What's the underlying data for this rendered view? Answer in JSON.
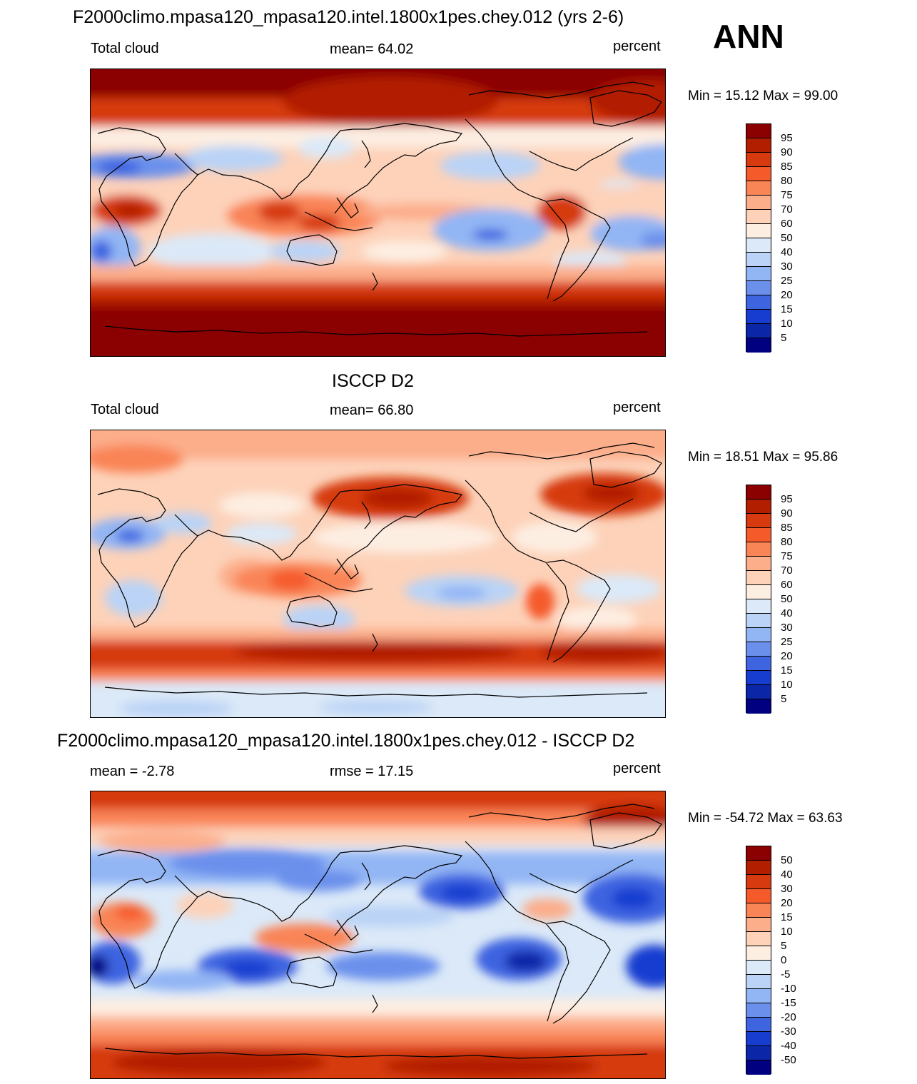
{
  "season": "ANN",
  "colors": {
    "ramp": [
      "#8b0000",
      "#b21e00",
      "#d63a0e",
      "#f55a2b",
      "#f98456",
      "#fcad8a",
      "#fdd2b9",
      "#fdeee2",
      "#dbe9f8",
      "#bad3f6",
      "#92b5f4",
      "#6b90ec",
      "#3e64e0",
      "#173dd0",
      "#0b27a8",
      "#000080"
    ]
  },
  "panels": [
    {
      "title": "F2000climo.mpasa120_mpasa120.intel.1800x1pes.chey.012 (yrs 2-6)",
      "left": "Total cloud",
      "center": "mean=  64.02",
      "right": "percent",
      "minmax": "Min =  15.12 Max =  99.00",
      "colorbar_labels": [
        "95",
        "90",
        "85",
        "80",
        "75",
        "70",
        "60",
        "50",
        "40",
        "30",
        "25",
        "20",
        "15",
        "10",
        "5"
      ],
      "colors": [
        "#8b0000",
        "#b21e00",
        "#d63a0e",
        "#f55a2b",
        "#f98456",
        "#fcad8a",
        "#fdd2b9",
        "#fdeee2",
        "#dbe9f8",
        "#bad3f6",
        "#92b5f4",
        "#6b90ec",
        "#3e64e0",
        "#173dd0",
        "#0b27a8",
        "#000080"
      ]
    },
    {
      "title": "ISCCP D2",
      "left": "Total cloud",
      "center": "mean=  66.80",
      "right": "percent",
      "minmax": "Min =  18.51 Max =  95.86",
      "colorbar_labels": [
        "95",
        "90",
        "85",
        "80",
        "75",
        "70",
        "60",
        "50",
        "40",
        "30",
        "25",
        "20",
        "15",
        "10",
        "5"
      ],
      "colors": [
        "#8b0000",
        "#b21e00",
        "#d63a0e",
        "#f55a2b",
        "#f98456",
        "#fcad8a",
        "#fdd2b9",
        "#fdeee2",
        "#dbe9f8",
        "#bad3f6",
        "#92b5f4",
        "#6b90ec",
        "#3e64e0",
        "#173dd0",
        "#0b27a8",
        "#000080"
      ]
    },
    {
      "title": "F2000climo.mpasa120_mpasa120.intel.1800x1pes.chey.012 - ISCCP D2",
      "left": "mean =  -2.78",
      "center": "rmse =  17.15",
      "right": "percent",
      "minmax": "Min = -54.72 Max =  63.63",
      "colorbar_labels": [
        "50",
        "40",
        "30",
        "20",
        "15",
        "10",
        "5",
        "0",
        "-5",
        "-10",
        "-15",
        "-20",
        "-30",
        "-40",
        "-50"
      ],
      "colors": [
        "#8b0000",
        "#b21e00",
        "#d63a0e",
        "#f55a2b",
        "#f98456",
        "#fcad8a",
        "#fdd2b9",
        "#fdeee2",
        "#dbe9f8",
        "#bad3f6",
        "#92b5f4",
        "#6b90ec",
        "#3e64e0",
        "#173dd0",
        "#0b27a8",
        "#000080"
      ]
    }
  ]
}
